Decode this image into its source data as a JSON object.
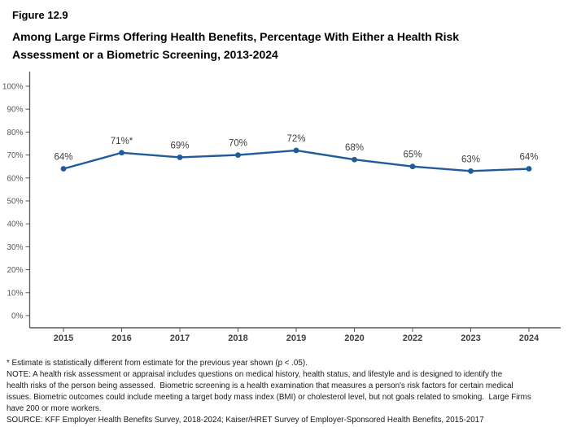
{
  "figure": {
    "label": "Figure 12.9",
    "title_lines": [
      "Among Large Firms Offering Health Benefits, Percentage With Either a Health Risk",
      "Assessment or a Biometric Screening, 2013-2024"
    ]
  },
  "chart_data": {
    "type": "line",
    "title": "Among Large Firms Offering Health Benefits, Percentage With Either a Health Risk Assessment or a Biometric Screening, 2013-2024",
    "categories": [
      "2015",
      "2016",
      "2017",
      "2018",
      "2019",
      "2020",
      "2022",
      "2023",
      "2024"
    ],
    "values": [
      64,
      71,
      69,
      70,
      72,
      68,
      65,
      63,
      64
    ],
    "point_labels": [
      "64%",
      "71%*",
      "69%",
      "70%",
      "72%",
      "68%",
      "65%",
      "63%",
      "64%"
    ],
    "xlabel": "",
    "ylabel": "",
    "ylim": [
      0,
      100
    ],
    "ytick_step": 10,
    "ytick_suffix": "%",
    "grid": false,
    "legend": "none",
    "line_color": "#1F5C99",
    "axis_color": "#595959",
    "marker": "circle"
  },
  "footnotes": {
    "lines": [
      "* Estimate is statistically different from estimate for the previous year shown (p < .05).",
      "NOTE: A health risk assessment or appraisal includes questions on medical history, health status, and lifestyle and is designed to identify the",
      "health risks of the person being assessed.  Biometric screening is a health examination that measures a person's risk factors for certain medical",
      "issues. Biometric outcomes could include meeting a target body mass index (BMI) or cholesterol level, but not goals related to smoking.  Large Firms",
      "have 200 or more workers.",
      "SOURCE: KFF Employer Health Benefits Survey, 2018-2024; Kaiser/HRET Survey of Employer-Sponsored Health Benefits, 2015-2017"
    ]
  }
}
